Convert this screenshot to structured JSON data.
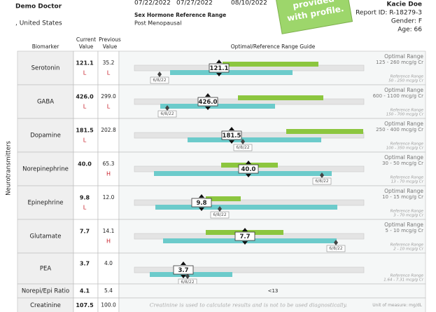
{
  "header": {
    "doctor": "Demo Doctor",
    "location": ", United States",
    "dates": [
      "07/22/2022",
      "07/27/2022",
      "08/10/2022"
    ],
    "range_title": "Sex Hormone Reference Range",
    "range_subtitle": "Post Menopausal",
    "sticker": [
      "provided",
      "with profile."
    ],
    "patient": {
      "name": "Kacie Doe",
      "report_id": "Report ID: R-18279-3",
      "gender": "Gender: F",
      "age": "Age: 66"
    }
  },
  "table": {
    "section": "Neurotransmitters",
    "columns": {
      "biomarker": "Biomarker",
      "current": [
        "Current",
        "Value"
      ],
      "previous": [
        "Previous",
        "Value"
      ],
      "guide": "Optimal/Reference Range Guide"
    },
    "rows": [
      {
        "name": "Serotonin",
        "current": "121.1",
        "current_flag": "L",
        "previous": "35.2",
        "previous_flag": "L",
        "optimal_label": "Optimal Range",
        "optimal_range": "125 - 260 mcg/g Cr",
        "reference_label": "Reference Range",
        "reference_range": "50 - 250 mcg/g Cr",
        "previous_date": "6/8/22"
      },
      {
        "name": "GABA",
        "current": "426.0",
        "current_flag": "L",
        "previous": "299.0",
        "previous_flag": "L",
        "optimal_label": "Optimal Range",
        "optimal_range": "600 - 1100 mcg/g Cr",
        "reference_label": "Reference Range",
        "reference_range": "150 - 700 mcg/g Cr",
        "previous_date": "6/8/22"
      },
      {
        "name": "Dopamine",
        "current": "181.5",
        "current_flag": "L",
        "previous": "202.8",
        "optimal_label": "Optimal Range",
        "optimal_range": "250 - 400 mcg/g Cr",
        "reference_label": "Reference Range",
        "reference_range": "100 - 350 mcg/g Cr",
        "previous_date": "6/8/22"
      },
      {
        "name": "Norepinephrine",
        "current": "40.0",
        "previous": "65.3",
        "previous_flag": "H",
        "optimal_label": "Optimal Range",
        "optimal_range": "30 - 50 mcg/g Cr",
        "reference_label": "Reference Range",
        "reference_range": "13 - 70 mcg/g Cr",
        "previous_date": "6/8/22"
      },
      {
        "name": "Epinephrine",
        "current": "9.8",
        "current_flag": "L",
        "previous": "12.0",
        "optimal_label": "Optimal Range",
        "optimal_range": "10 - 15 mcg/g Cr",
        "reference_label": "Reference Range",
        "reference_range": "3 - 70 mcg/g Cr",
        "previous_date": "6/8/22"
      },
      {
        "name": "Glutamate",
        "current": "7.7",
        "previous": "14.1",
        "previous_flag": "H",
        "optimal_label": "Optimal Range",
        "optimal_range": "5 - 10 mcg/g Cr",
        "reference_label": "Reference Range",
        "reference_range": "2 - 10 mcg/g Cr",
        "previous_date": "6/8/22"
      },
      {
        "name": "PEA",
        "current": "3.7",
        "previous": "4.0",
        "reference_label": "Reference Range",
        "reference_range": "1.64 - 7.31 mcg/g Cr",
        "previous_date": "6/8/22"
      },
      {
        "name": "Norepi/Epi Ratio",
        "current": "4.1",
        "previous": "5.4",
        "guide": "<13"
      },
      {
        "name": "Creatinine",
        "current": "107.5",
        "previous": "100.0",
        "note": "Creatinine is used to calculate results and is not to be used diagnostically.",
        "unit": "Unit of measure: mg/dL"
      }
    ]
  }
}
